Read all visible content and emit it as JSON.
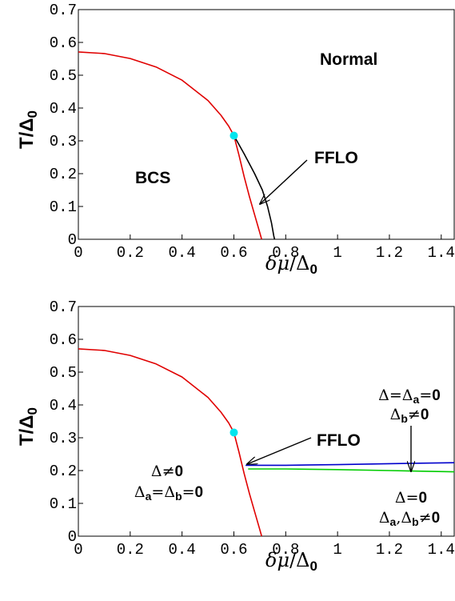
{
  "chart_data": [
    {
      "type": "line",
      "xlim": [
        0,
        1.45
      ],
      "ylim": [
        0,
        0.7
      ],
      "x_ticks": [
        "0",
        "0.2",
        "0.4",
        "0.6",
        "0.8",
        "1",
        "1.2",
        "1.4"
      ],
      "y_ticks": [
        "0",
        "0.1",
        "0.2",
        "0.3",
        "0.4",
        "0.5",
        "0.6",
        "0.7"
      ],
      "series": [
        {
          "color": "#e00000",
          "x": [
            0,
            0.1,
            0.2,
            0.3,
            0.4,
            0.5,
            0.55,
            0.58,
            0.6,
            0.62,
            0.64,
            0.66,
            0.68,
            0.7,
            0.707
          ],
          "y": [
            0.571,
            0.566,
            0.551,
            0.525,
            0.485,
            0.423,
            0.378,
            0.345,
            0.316,
            0.255,
            0.19,
            0.13,
            0.075,
            0.02,
            0
          ]
        },
        {
          "color": "#000000",
          "x": [
            0.6,
            0.64,
            0.68,
            0.71,
            0.73,
            0.745,
            0.754,
            0.757
          ],
          "y": [
            0.316,
            0.26,
            0.2,
            0.15,
            0.1,
            0.05,
            0.01,
            0
          ]
        }
      ],
      "points": [
        {
          "x": 0.6,
          "y": 0.316,
          "color": "#00e5ee"
        }
      ],
      "annotations": {
        "normal": "Normal",
        "bcs": "BCS",
        "fflo": "FFLO"
      },
      "xlabel": {
        "delta": "δ",
        "mu": "μ",
        "over": "/Δ",
        "sub": "0"
      },
      "ylabel": {
        "main": "T/Δ",
        "sub": "0"
      }
    },
    {
      "type": "line",
      "xlim": [
        0,
        1.45
      ],
      "ylim": [
        0,
        0.7
      ],
      "x_ticks": [
        "0",
        "0.2",
        "0.4",
        "0.6",
        "0.8",
        "1",
        "1.2",
        "1.4"
      ],
      "y_ticks": [
        "0",
        "0.1",
        "0.2",
        "0.3",
        "0.4",
        "0.5",
        "0.6",
        "0.7"
      ],
      "series": [
        {
          "color": "#e00000",
          "x": [
            0,
            0.1,
            0.2,
            0.3,
            0.4,
            0.5,
            0.55,
            0.58,
            0.6,
            0.62,
            0.64,
            0.66,
            0.68,
            0.7,
            0.707
          ],
          "y": [
            0.571,
            0.566,
            0.551,
            0.525,
            0.485,
            0.423,
            0.378,
            0.345,
            0.316,
            0.255,
            0.19,
            0.13,
            0.075,
            0.02,
            0
          ]
        },
        {
          "color": "#0000cc",
          "x": [
            0.645,
            0.8,
            1.0,
            1.2,
            1.45
          ],
          "y": [
            0.216,
            0.216,
            0.218,
            0.221,
            0.224
          ]
        },
        {
          "color": "#00cc00",
          "x": [
            0.655,
            0.8,
            1.0,
            1.2,
            1.45
          ],
          "y": [
            0.205,
            0.205,
            0.203,
            0.2,
            0.196
          ]
        }
      ],
      "points": [
        {
          "x": 0.6,
          "y": 0.316,
          "color": "#00e5ee"
        }
      ],
      "annotations": {
        "fflo": "FFLO",
        "r1_l1": {
          "a": "Δ",
          "b": "≠",
          "c": "0"
        },
        "r1_l2": {
          "a": "Δ",
          "as": "a",
          "b": "=Δ",
          "bs": "b",
          "c": "=",
          "d": "0"
        },
        "r2_l1": {
          "a": "Δ=Δ",
          "as": "a",
          "b": "=",
          "c": "0"
        },
        "r2_l2": {
          "a": "Δ",
          "as": "b",
          "b": "≠",
          "c": "0"
        },
        "r3_l1": {
          "a": "Δ=",
          "c": "0"
        },
        "r3_l2": {
          "a": "Δ",
          "as": "a",
          "b": ",Δ",
          "bs": "b",
          "c": "≠",
          "d": "0"
        }
      },
      "xlabel": {
        "delta": "δ",
        "mu": "μ",
        "over": "/Δ",
        "sub": "0"
      },
      "ylabel": {
        "main": "T/Δ",
        "sub": "0"
      }
    }
  ]
}
